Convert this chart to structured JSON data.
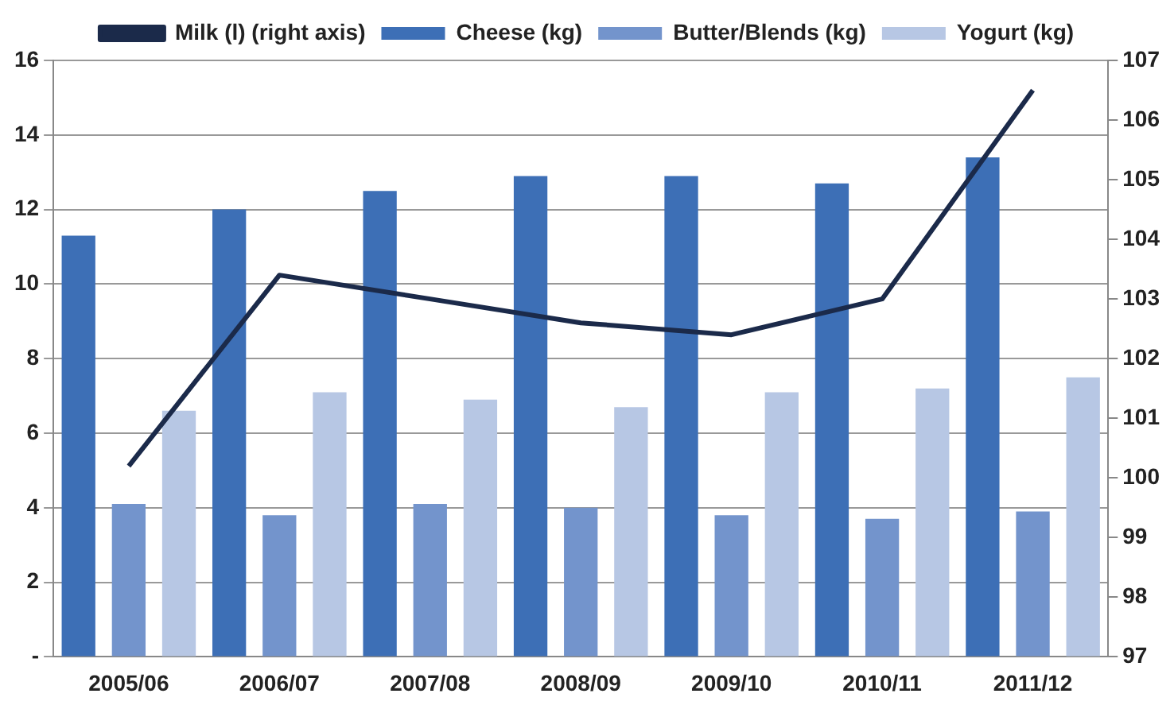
{
  "chart_data": {
    "type": "bar",
    "categories": [
      "2005/06",
      "2006/07",
      "2007/08",
      "2008/09",
      "2009/10",
      "2010/11",
      "2011/12"
    ],
    "series": [
      {
        "name": "Cheese (kg)",
        "color": "#3d6fb6",
        "values": [
          11.3,
          12.0,
          12.5,
          12.9,
          12.9,
          12.7,
          13.4
        ]
      },
      {
        "name": "Butter/Blends (kg)",
        "color": "#7394cc",
        "values": [
          4.1,
          3.8,
          4.1,
          4.0,
          3.8,
          3.7,
          3.9
        ]
      },
      {
        "name": "Yogurt (kg)",
        "color": "#b7c7e4",
        "values": [
          6.6,
          7.1,
          6.9,
          6.7,
          7.1,
          7.2,
          7.5
        ]
      },
      {
        "name": "Milk (l) (right axis)",
        "type": "line",
        "axis": "y2",
        "color": "#1b2a4a",
        "values": [
          100.2,
          103.4,
          103.0,
          102.6,
          102.4,
          103.0,
          106.5
        ]
      }
    ],
    "ylim": [
      0,
      16
    ],
    "yticks": [
      {
        "value": 0,
        "label": "-"
      },
      2,
      4,
      6,
      8,
      10,
      12,
      14,
      16
    ],
    "y2lim": [
      97,
      107
    ],
    "y2ticks": [
      97,
      98,
      99,
      100,
      101,
      102,
      103,
      104,
      105,
      106,
      107
    ],
    "grid": "y",
    "legend": "top",
    "marker": "none",
    "line_style": "solid"
  }
}
